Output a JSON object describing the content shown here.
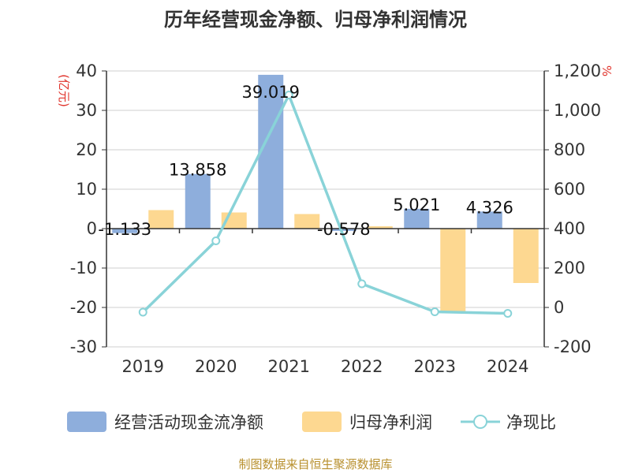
{
  "title": "历年经营现金净额、归母净利润情况",
  "source": "制图数据来自恒生聚源数据库",
  "colors": {
    "cash_flow": "#8eaedc",
    "net_profit": "#fdd891",
    "ratio": "#89d3d8",
    "unit": "#e0322a",
    "source": "#b8902e"
  },
  "chart_data": {
    "type": "bar",
    "title": "历年经营现金净额、归母净利润情况",
    "categories": [
      "2019",
      "2020",
      "2021",
      "2022",
      "2023",
      "2024"
    ],
    "y_left": {
      "label": "(亿元)",
      "ylim": [
        -30,
        40
      ],
      "ticks": [
        "40",
        "30",
        "20",
        "10",
        "0",
        "-10",
        "-20",
        "-30"
      ],
      "tick_values": [
        40,
        30,
        20,
        10,
        0,
        -10,
        -20,
        -30
      ]
    },
    "y_right": {
      "label": "%",
      "ylim": [
        -200,
        1200
      ],
      "ticks": [
        "1,200",
        "1,000",
        "800",
        "600",
        "400",
        "200",
        "0",
        "-200"
      ],
      "tick_values": [
        1200,
        1000,
        800,
        600,
        400,
        200,
        0,
        -200
      ]
    },
    "series": [
      {
        "name": "经营活动现金流净额",
        "type": "bar",
        "axis": "left",
        "values": [
          -1.133,
          13.858,
          39.019,
          -0.578,
          5.021,
          4.326
        ],
        "labels": [
          "-1.133",
          "13.858",
          "39.019",
          "-0.578",
          "5.021",
          "4.326"
        ]
      },
      {
        "name": "归母净利润",
        "type": "bar",
        "axis": "left",
        "values": [
          4.7,
          4.1,
          3.7,
          0.6,
          -21.0,
          -13.8
        ]
      },
      {
        "name": "净现比",
        "type": "line",
        "axis": "right",
        "values": [
          -24,
          338,
          1078,
          120,
          -22,
          -30
        ]
      }
    ],
    "grid": true,
    "legend_position": "bottom"
  }
}
